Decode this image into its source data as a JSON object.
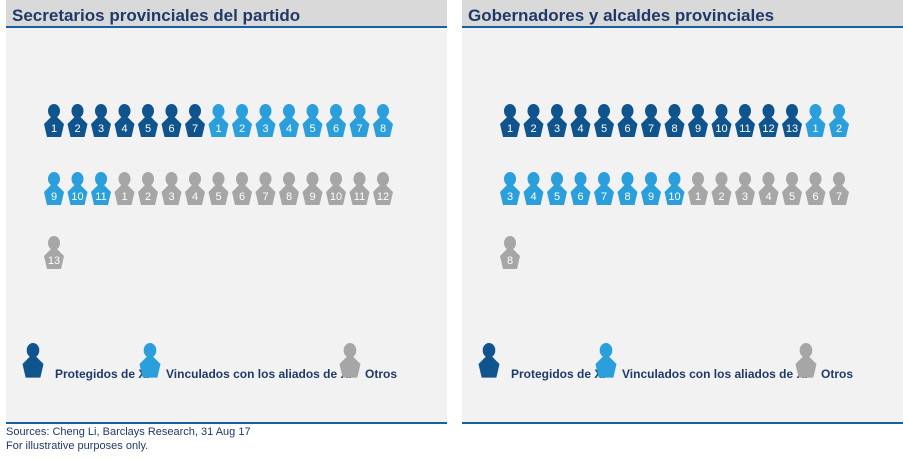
{
  "palette": {
    "protegidos": "#0f548d",
    "vinculados": "#2a9fdc",
    "otros": "#a6a6a6"
  },
  "chart_data": [
    {
      "type": "pictogram",
      "title": "Secretarios provinciales del partido",
      "categories": [
        "Protegidos de Xi",
        "Vinculados con los aliados de Xi",
        "Otros"
      ],
      "values": [
        7,
        11,
        13
      ]
    },
    {
      "type": "pictogram",
      "title": "Gobernadores y alcaldes provinciales",
      "categories": [
        "Protegidos de Xi",
        "Vinculados con los aliados de Xi",
        "Otros"
      ],
      "values": [
        13,
        10,
        8
      ]
    }
  ],
  "legend": {
    "protegidos": "Protegidos de Xi",
    "vinculados": "Vinculados con los aliados de Xi",
    "otros": "Otros"
  },
  "footer": {
    "sources": "Sources: Cheng Li, Barclays Research, 31 Aug 17",
    "note": "For illustrative purposes only."
  }
}
